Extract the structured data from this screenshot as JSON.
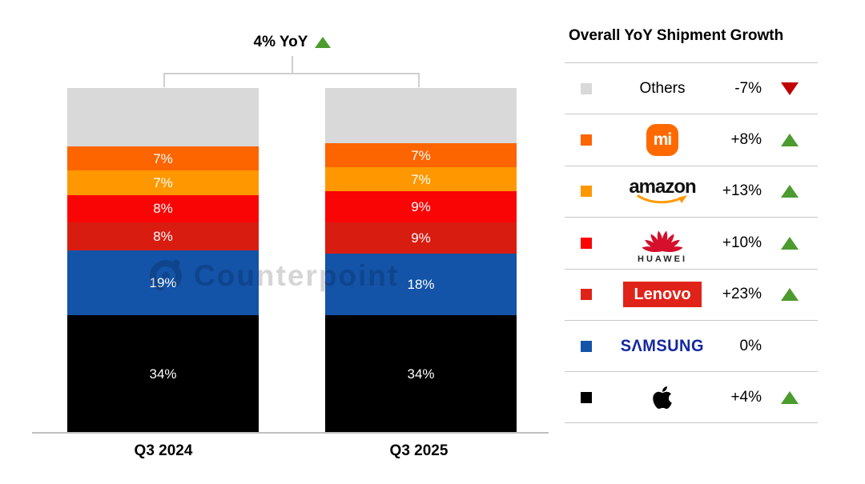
{
  "header": {
    "label": "4% YoY",
    "direction": "up"
  },
  "watermark": {
    "text": "Counterpoint"
  },
  "chart_data": {
    "type": "bar",
    "subtype": "stacked-100-percent",
    "title": "4% YoY",
    "unit": "% share of shipments",
    "categories": [
      "Q3 2024",
      "Q3 2025"
    ],
    "stack_order": "bottom-to-top",
    "legend_position": "right",
    "series": [
      {
        "name": "Apple",
        "color": "#000000",
        "values": [
          34,
          34
        ],
        "labels": [
          "34%",
          "34%"
        ]
      },
      {
        "name": "Samsung",
        "color": "#1353A8",
        "values": [
          19,
          18
        ],
        "labels": [
          "19%",
          "18%"
        ]
      },
      {
        "name": "Lenovo",
        "color": "#D91C10",
        "values": [
          8,
          9
        ],
        "labels": [
          "8%",
          "9%"
        ]
      },
      {
        "name": "Huawei",
        "color": "#FA0505",
        "values": [
          8,
          9
        ],
        "labels": [
          "8%",
          "9%"
        ]
      },
      {
        "name": "Amazon",
        "color": "#FF9800",
        "values": [
          7,
          7
        ],
        "labels": [
          "7%",
          "7%"
        ]
      },
      {
        "name": "Xiaomi",
        "color": "#FC6500",
        "values": [
          7,
          7
        ],
        "labels": [
          "7%",
          "7%"
        ]
      },
      {
        "name": "Others",
        "color": "#D9D9D9",
        "values": [
          17,
          16
        ],
        "labels": null
      }
    ]
  },
  "legend": {
    "title": "Overall YoY Shipment Growth",
    "rows": [
      {
        "name": "Others",
        "logo_text": "Others",
        "growth": "-7%",
        "direction": "down",
        "color": "#D9D9D9"
      },
      {
        "name": "Xiaomi",
        "logo_text": "mi",
        "growth": "+8%",
        "direction": "up",
        "color": "#FC6500"
      },
      {
        "name": "Amazon",
        "logo_text": "amazon",
        "growth": "+13%",
        "direction": "up",
        "color": "#FF9800"
      },
      {
        "name": "Huawei",
        "logo_text": "HUAWEI",
        "growth": "+10%",
        "direction": "up",
        "color": "#FA0505"
      },
      {
        "name": "Lenovo",
        "logo_text": "Lenovo",
        "growth": "+23%",
        "direction": "up",
        "color": "#E02318"
      },
      {
        "name": "Samsung",
        "logo_text": "SΛMSUNG",
        "growth": "0%",
        "direction": "none",
        "color": "#1353A8"
      },
      {
        "name": "Apple",
        "logo_text": "",
        "growth": "+4%",
        "direction": "up",
        "color": "#000000"
      }
    ]
  },
  "colors": {
    "up_green": "#4C9B2F",
    "down_red": "#C00000",
    "line_gray": "#C8C8C8"
  }
}
